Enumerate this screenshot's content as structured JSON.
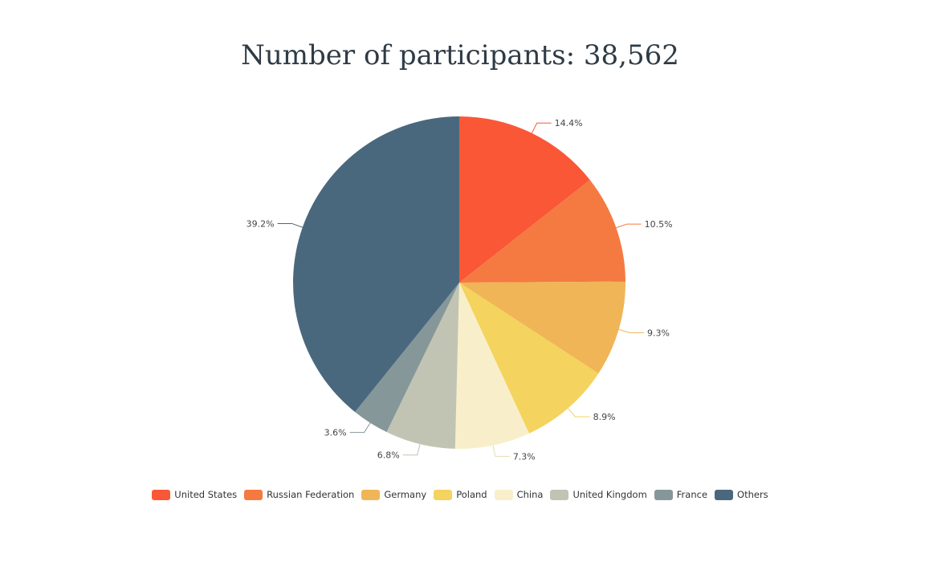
{
  "chart_data": {
    "type": "pie",
    "title": "Number of participants: 38,562",
    "categories": [
      "United States",
      "Russian Federation",
      "Germany",
      "Poland",
      "China",
      "United Kingdom",
      "France",
      "Others"
    ],
    "values": [
      14.4,
      10.5,
      9.3,
      8.9,
      7.3,
      6.8,
      3.6,
      39.2
    ],
    "value_labels": [
      "14.4%",
      "10.5%",
      "9.3%",
      "8.9%",
      "7.3%",
      "6.8%",
      "3.6%",
      "39.2%"
    ],
    "colors": [
      "#fa5737",
      "#f47a42",
      "#f0b556",
      "#f4d35e",
      "#f8efca",
      "#c1c4b2",
      "#86979a",
      "#4a687d"
    ],
    "legend_position": "bottom",
    "start_angle": "top, clockwise"
  }
}
